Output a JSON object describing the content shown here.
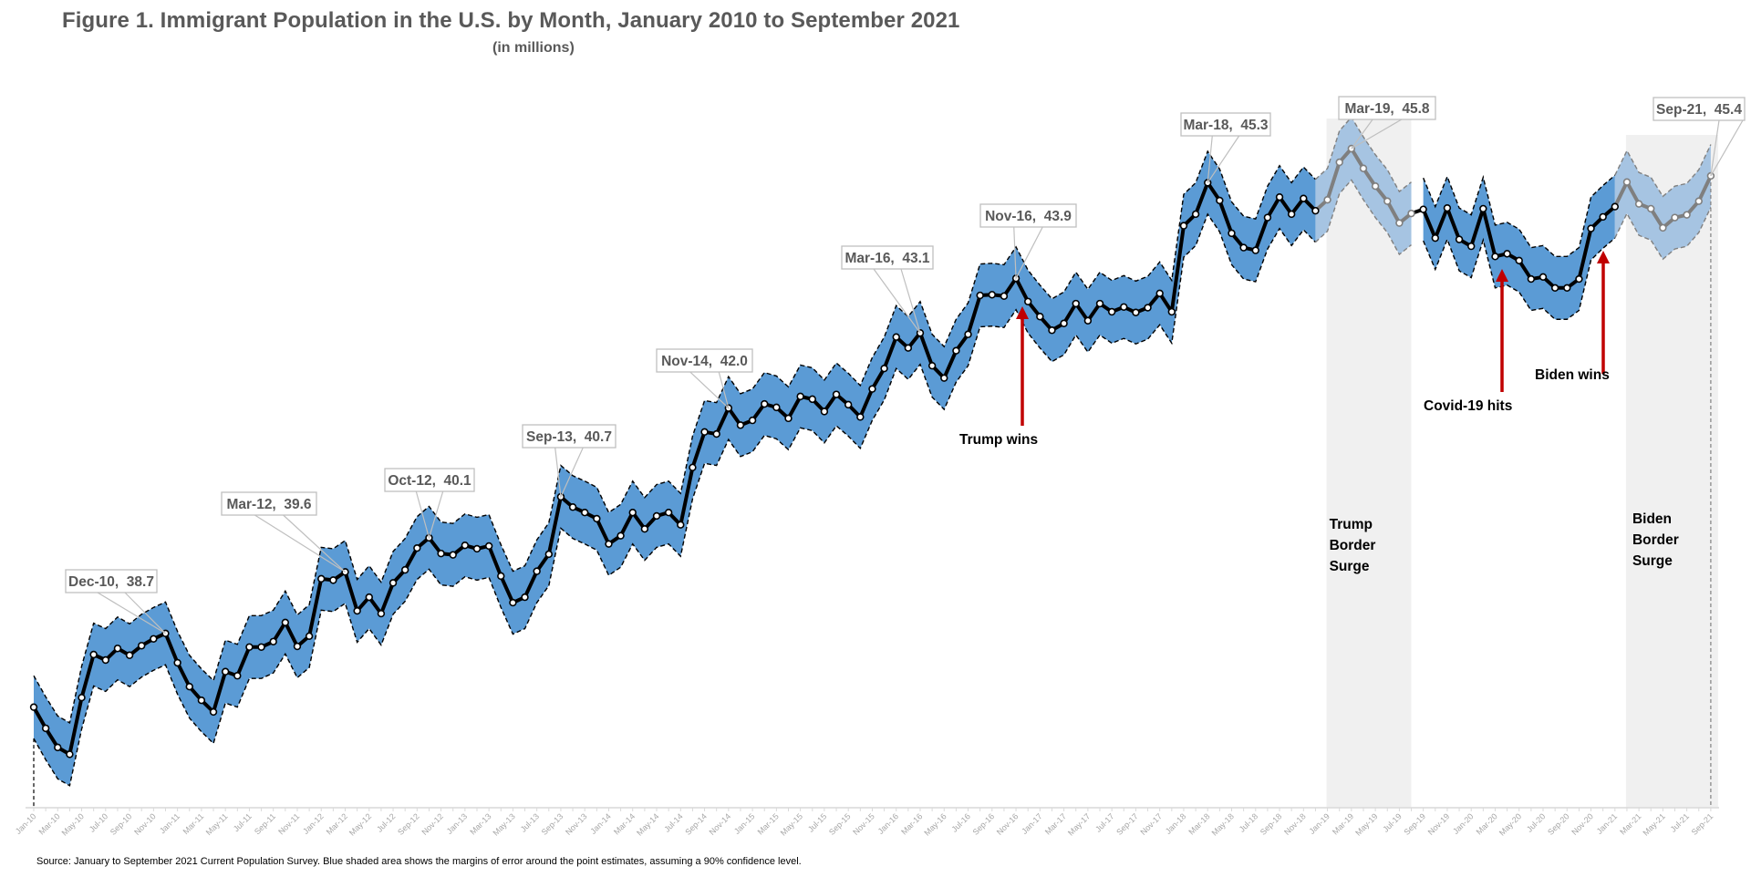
{
  "chart_data": {
    "type": "line",
    "title": "Figure 1. Immigrant Population in the U.S. by Month, January 2010 to September 2021",
    "subtitle": "(in millions)",
    "xlabel": "",
    "ylabel": "",
    "grid": false,
    "legend": "none",
    "source": "Source: January to September 2021 Current Population Survey. Blue shaded area shows the margins of error around the point estimates, assuming a 90% confidence level.",
    "x_tick_labels": [
      "Jan-10",
      "Mar-10",
      "May-10",
      "Jul-10",
      "Sep-10",
      "Nov-10",
      "Jan-11",
      "Mar-11",
      "May-11",
      "Jul-11",
      "Sep-11",
      "Nov-11",
      "Jan-12",
      "Mar-12",
      "May-12",
      "Jul-12",
      "Sep-12",
      "Nov-12",
      "Jan-13",
      "Mar-13",
      "May-13",
      "Jul-13",
      "Sep-13",
      "Nov-13",
      "Jan-14",
      "Mar-14",
      "May-14",
      "Jul-14",
      "Sep-14",
      "Nov-14",
      "Jan-15",
      "Mar-15",
      "May-15",
      "Jul-15",
      "Sep-15",
      "Nov-15",
      "Jan-16",
      "Mar-16",
      "May-16",
      "Jul-16",
      "Sep-16",
      "Nov-16",
      "Jan-17",
      "Mar-17",
      "May-17",
      "Jul-17",
      "Sep-17",
      "Nov-17",
      "Jan-18",
      "Mar-18",
      "May-18",
      "Jul-18",
      "Sep-18",
      "Nov-18",
      "Jan-19",
      "Mar-19",
      "May-19",
      "Jul-19",
      "Sep-19",
      "Nov-19",
      "Jan-20",
      "Mar-20",
      "May-20",
      "Jul-20",
      "Sep-20",
      "Nov-20",
      "Jan-21",
      "Mar-21",
      "May-21",
      "Jul-21",
      "Sep-21"
    ],
    "ylim": [
      35.2,
      46.6
    ],
    "confidence_level": "90%",
    "margin_of_error": 0.46,
    "series": [
      {
        "name": "Immigrant population (millions)",
        "start": "Jan-10",
        "values": [
          37.62,
          37.31,
          37.03,
          36.93,
          37.76,
          38.39,
          38.31,
          38.48,
          38.38,
          38.52,
          38.62,
          38.7,
          38.27,
          37.92,
          37.72,
          37.55,
          38.14,
          38.08,
          38.5,
          38.5,
          38.58,
          38.86,
          38.51,
          38.66,
          39.5,
          39.48,
          39.6,
          39.03,
          39.23,
          38.99,
          39.44,
          39.63,
          39.95,
          40.1,
          39.87,
          39.85,
          39.99,
          39.94,
          39.98,
          39.54,
          39.15,
          39.23,
          39.61,
          39.86,
          40.7,
          40.55,
          40.47,
          40.38,
          40.01,
          40.13,
          40.47,
          40.23,
          40.42,
          40.47,
          40.29,
          41.13,
          41.65,
          41.62,
          42.0,
          41.75,
          41.82,
          42.06,
          42.01,
          41.85,
          42.17,
          42.13,
          41.95,
          42.2,
          42.05,
          41.87,
          42.28,
          42.58,
          43.04,
          42.88,
          43.1,
          42.62,
          42.44,
          42.84,
          43.08,
          43.65,
          43.66,
          43.64,
          43.9,
          43.56,
          43.34,
          43.14,
          43.24,
          43.53,
          43.28,
          43.53,
          43.41,
          43.48,
          43.4,
          43.47,
          43.68,
          43.41,
          44.67,
          44.84,
          45.3,
          45.04,
          44.56,
          44.35,
          44.31,
          44.79,
          45.09,
          44.84,
          45.07,
          44.89,
          45.05,
          45.6,
          45.8,
          45.51,
          45.25,
          45.03,
          44.71,
          44.85,
          44.91,
          44.49,
          44.93,
          44.47,
          44.37,
          44.92,
          44.22,
          44.26,
          44.16,
          43.89,
          43.92,
          43.76,
          43.76,
          43.89,
          44.63,
          44.8,
          44.95,
          45.31,
          44.99,
          44.92,
          44.64,
          44.79,
          44.83,
          45.03,
          45.4
        ]
      }
    ],
    "data_labels": [
      {
        "month": "Dec-10",
        "text": "Dec-10,  38.7"
      },
      {
        "month": "Mar-12",
        "text": "Mar-12,  39.6"
      },
      {
        "month": "Oct-12",
        "text": "Oct-12,  40.1"
      },
      {
        "month": "Sep-13",
        "text": "Sep-13,  40.7"
      },
      {
        "month": "Nov-14",
        "text": "Nov-14,  42.0"
      },
      {
        "month": "Mar-16",
        "text": "Mar-16,  43.1"
      },
      {
        "month": "Nov-16",
        "text": "Nov-16,  43.9"
      },
      {
        "month": "Mar-18",
        "text": "Mar-18,  45.3"
      },
      {
        "month": "Mar-19",
        "text": "Mar-19,  45.8"
      },
      {
        "month": "Sep-21",
        "text": "Sep-21,  45.4"
      }
    ],
    "shaded_periods": [
      {
        "label": [
          "Trump",
          "Border",
          "Surge"
        ],
        "start": "Jan-19",
        "end": "Aug-19"
      },
      {
        "label": [
          "Biden",
          "Border",
          "Surge"
        ],
        "start": "Feb-21",
        "end": "Sep-21"
      }
    ],
    "event_annotations": [
      {
        "text": "Trump wins",
        "month": "Dec-16"
      },
      {
        "text": "Covid-19 hits",
        "month": "Apr-20"
      },
      {
        "text": "Biden wins",
        "month": "Dec-20"
      }
    ],
    "colors": {
      "band": "#5b9bd5",
      "band_highlight": "#a6c4e2",
      "line": "#000000",
      "line_highlight": "#7f7f7f",
      "shade": "#f0f0f0",
      "arrow": "#c00000",
      "label_text": "#595959"
    }
  }
}
